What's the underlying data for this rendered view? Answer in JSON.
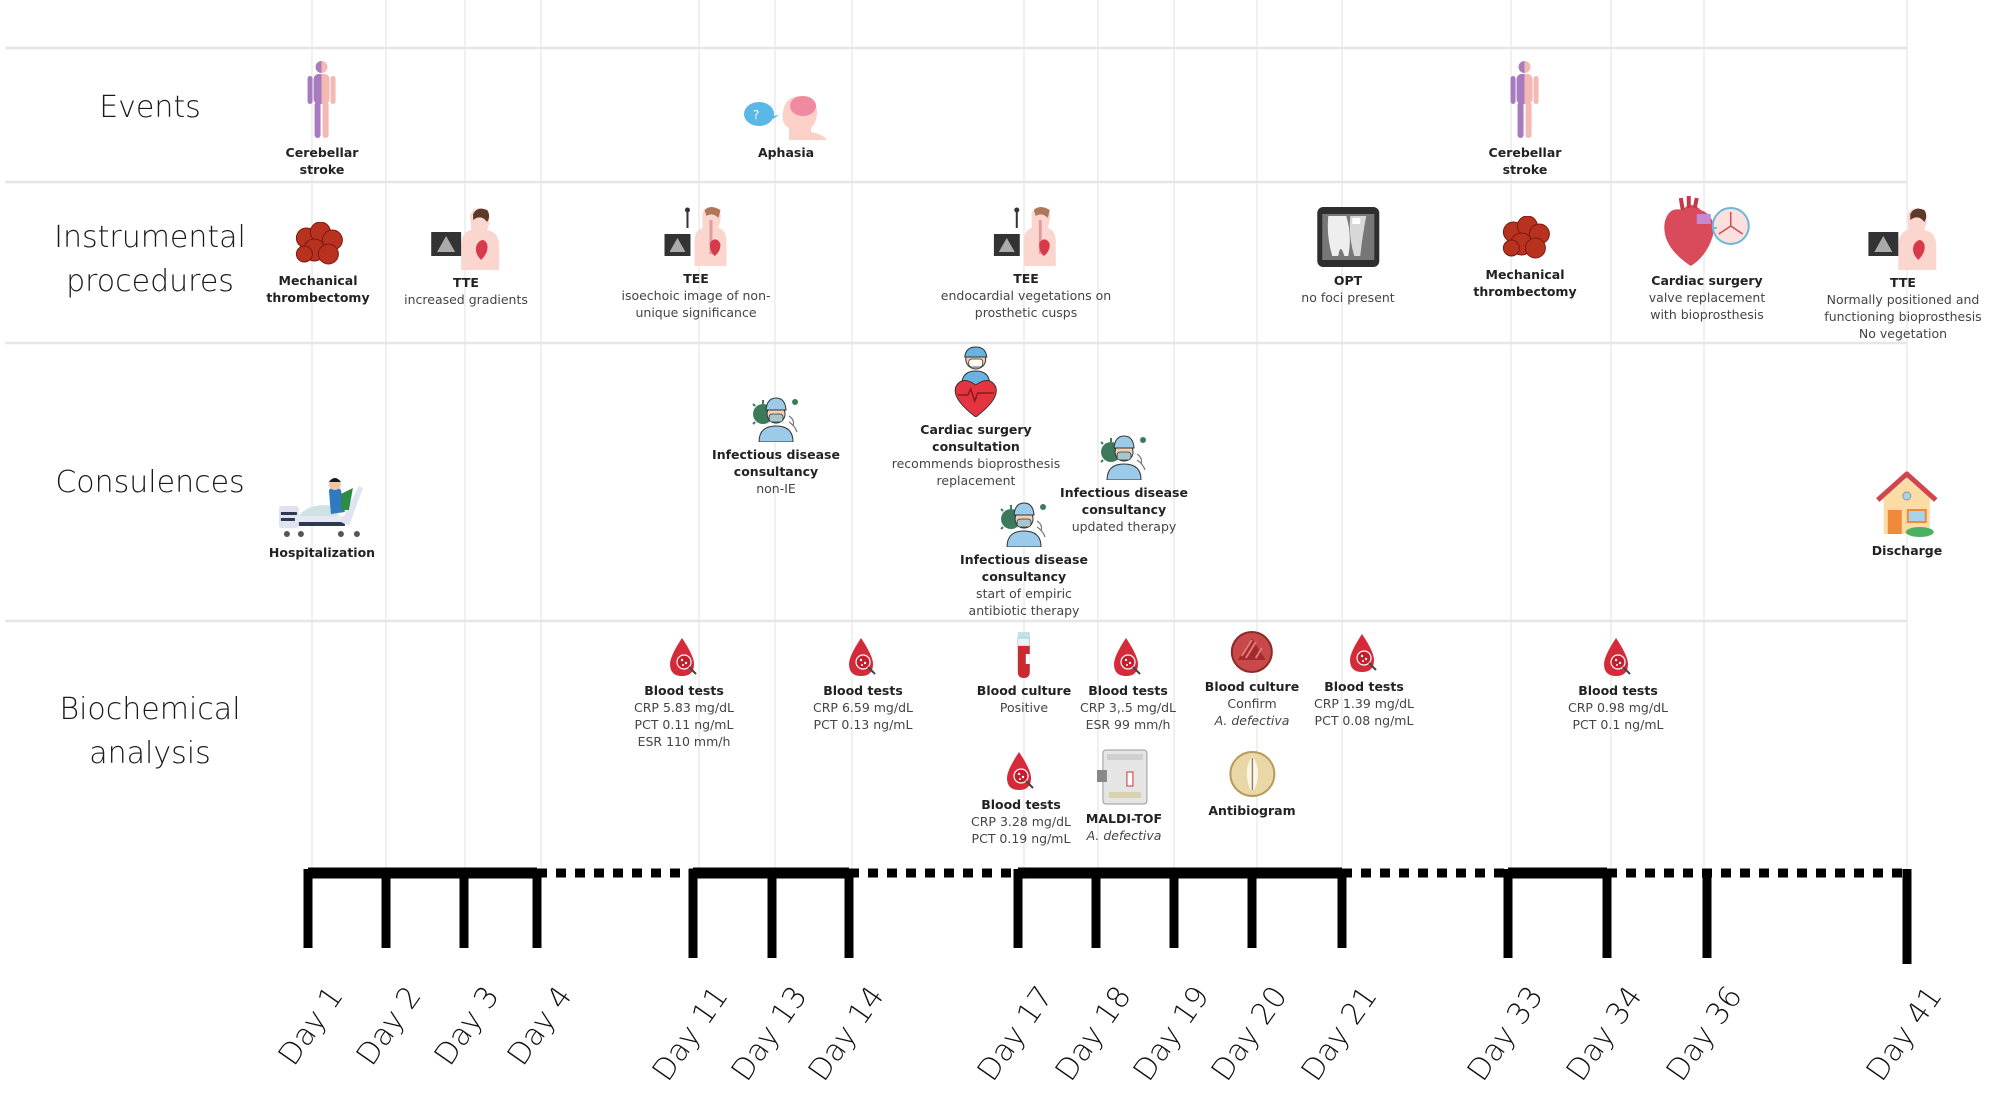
{
  "rows": [
    {
      "id": "events",
      "label_lines": [
        "Events"
      ]
    },
    {
      "id": "instrumental",
      "label_lines": [
        "Instrumental",
        "procedures"
      ]
    },
    {
      "id": "consulences",
      "label_lines": [
        "Consulences"
      ]
    },
    {
      "id": "biochemical",
      "label_lines": [
        "Biochemical",
        "analysis"
      ]
    }
  ],
  "timeline": {
    "days": [
      "Day 1",
      "Day 2",
      "Day 3",
      "Day 4",
      "Day 11",
      "Day 13",
      "Day 14",
      "Day 17",
      "Day 18",
      "Day 19",
      "Day 20",
      "Day 21",
      "Day 33",
      "Day 34",
      "Day 36",
      "Day 41"
    ],
    "segments": [
      {
        "from": "Day 1",
        "to": "Day 4",
        "style": "solid"
      },
      {
        "from": "Day 4",
        "to": "Day 11",
        "style": "dotted"
      },
      {
        "from": "Day 11",
        "to": "Day 14",
        "style": "solid"
      },
      {
        "from": "Day 14",
        "to": "Day 17",
        "style": "dotted"
      },
      {
        "from": "Day 17",
        "to": "Day 21",
        "style": "solid"
      },
      {
        "from": "Day 21",
        "to": "Day 33",
        "style": "dotted"
      },
      {
        "from": "Day 33",
        "to": "Day 34",
        "style": "solid"
      },
      {
        "from": "Day 34",
        "to": "Day 41",
        "style": "dotted"
      }
    ]
  },
  "events": [
    {
      "day": "Day 1",
      "icon": "human-body-icon",
      "title_lines": [
        "Cerebellar",
        "stroke"
      ],
      "desc_lines": []
    },
    {
      "day": "Day 13",
      "icon": "aphasia-head-icon",
      "title_lines": [
        "Aphasia"
      ],
      "desc_lines": []
    },
    {
      "day": "Day 33",
      "icon": "human-body-icon",
      "title_lines": [
        "Cerebellar",
        "stroke"
      ],
      "desc_lines": []
    }
  ],
  "instrumental": [
    {
      "day": "Day 1",
      "icon": "thrombus-icon",
      "title_lines": [
        "Mechanical",
        "thrombectomy"
      ],
      "desc_lines": []
    },
    {
      "day": "Day 3",
      "icon": "tte-echo-icon",
      "title_lines": [
        "TTE"
      ],
      "desc_lines": [
        "increased gradients"
      ]
    },
    {
      "day": "Day 11",
      "icon": "tee-echo-icon",
      "title_lines": [
        "TEE"
      ],
      "desc_lines": [
        "isoechoic image of non-",
        "unique significance"
      ]
    },
    {
      "day": "Day 17",
      "icon": "tee-echo-icon",
      "title_lines": [
        "TEE"
      ],
      "desc_lines": [
        "endocardial vegetations on",
        "prosthetic cusps"
      ]
    },
    {
      "day": "Day 21",
      "icon": "dental-xray-icon",
      "title_lines": [
        "OPT"
      ],
      "desc_lines": [
        "no foci present"
      ]
    },
    {
      "day": "Day 33",
      "icon": "thrombus-icon",
      "title_lines": [
        "Mechanical",
        "thrombectomy"
      ],
      "desc_lines": []
    },
    {
      "day": "Day 36",
      "icon": "heart-valve-icon",
      "title_lines": [
        "Cardiac surgery"
      ],
      "desc_lines": [
        "valve replacement",
        "with bioprosthesis"
      ]
    },
    {
      "day": "Day 41",
      "icon": "tte-echo-icon",
      "title_lines": [
        "TTE"
      ],
      "desc_lines": [
        "Normally positioned and",
        "functioning bioprosthesis",
        "No vegetation"
      ]
    }
  ],
  "consulences": [
    {
      "day": "Day 1",
      "icon": "hospital-bed-icon",
      "title_lines": [
        "Hospitalization"
      ],
      "desc_lines": []
    },
    {
      "day": "Day 13",
      "icon": "infectious-disease-doctor-icon",
      "title_lines": [
        "Infectious disease",
        "consultancy"
      ],
      "desc_lines": [
        "non-IE"
      ]
    },
    {
      "day": "Day 17a",
      "icon": "cardiac-surgeon-icon",
      "title_lines": [
        "Cardiac surgery",
        "consultation"
      ],
      "desc_lines": [
        "recommends bioprosthesis",
        "replacement"
      ]
    },
    {
      "day": "Day 18",
      "icon": "infectious-disease-doctor-icon",
      "title_lines": [
        "Infectious disease",
        "consultancy"
      ],
      "desc_lines": [
        "updated therapy"
      ]
    },
    {
      "day": "Day 17",
      "icon": "infectious-disease-doctor-icon",
      "title_lines": [
        "Infectious disease",
        "consultancy"
      ],
      "desc_lines": [
        "start of empiric",
        "antibiotic therapy"
      ]
    },
    {
      "day": "Day 41",
      "icon": "house-icon",
      "title_lines": [
        "Discharge"
      ],
      "desc_lines": []
    }
  ],
  "biochemical": [
    {
      "day": "Day 11",
      "icon": "blood-drop-icon",
      "title_lines": [
        "Blood tests"
      ],
      "desc_lines": [
        "CRP 5.83 mg/dL",
        "PCT 0.11 ng/mL",
        "ESR  110 mm/h"
      ]
    },
    {
      "day": "Day 14",
      "icon": "blood-drop-icon",
      "title_lines": [
        "Blood tests"
      ],
      "desc_lines": [
        "CRP 6.59 mg/dL",
        "PCT 0.13 ng/mL"
      ]
    },
    {
      "day": "Day 17",
      "icon": "blood-tube-icon",
      "title_lines": [
        "Blood culture"
      ],
      "desc_lines": [
        "Positive"
      ]
    },
    {
      "day": "Day 18",
      "icon": "blood-drop-icon",
      "title_lines": [
        "Blood tests"
      ],
      "desc_lines": [
        "CRP 3,.5 mg/dL",
        "ESR  99 mm/h"
      ]
    },
    {
      "day": "Day 20",
      "icon": "petri-dish-icon",
      "title_lines": [
        "Blood culture"
      ],
      "desc_lines": [
        "Confirm"
      ],
      "italic_lines": [
        "A. defectiva"
      ]
    },
    {
      "day": "Day 21",
      "icon": "blood-drop-icon",
      "title_lines": [
        "Blood tests"
      ],
      "desc_lines": [
        "CRP 1.39 mg/dL",
        "PCT 0.08 ng/mL"
      ]
    },
    {
      "day": "Day 34",
      "icon": "blood-drop-icon",
      "title_lines": [
        "Blood tests"
      ],
      "desc_lines": [
        "CRP 0.98 mg/dL",
        "PCT 0.1 ng/mL"
      ]
    },
    {
      "day": "Day 17",
      "icon": "blood-drop-icon",
      "title_lines": [
        "Blood tests"
      ],
      "desc_lines": [
        "CRP 3.28 mg/dL",
        "PCT 0.19 ng/mL"
      ],
      "lower": true
    },
    {
      "day": "Day 18",
      "icon": "maldi-tof-icon",
      "title_lines": [
        "MALDI-TOF"
      ],
      "desc_lines": [],
      "italic_lines": [
        "A. defectiva"
      ],
      "lower": true
    },
    {
      "day": "Day 20",
      "icon": "antibiogram-icon",
      "title_lines": [
        "Antibiogram"
      ],
      "desc_lines": [],
      "lower": true
    }
  ]
}
